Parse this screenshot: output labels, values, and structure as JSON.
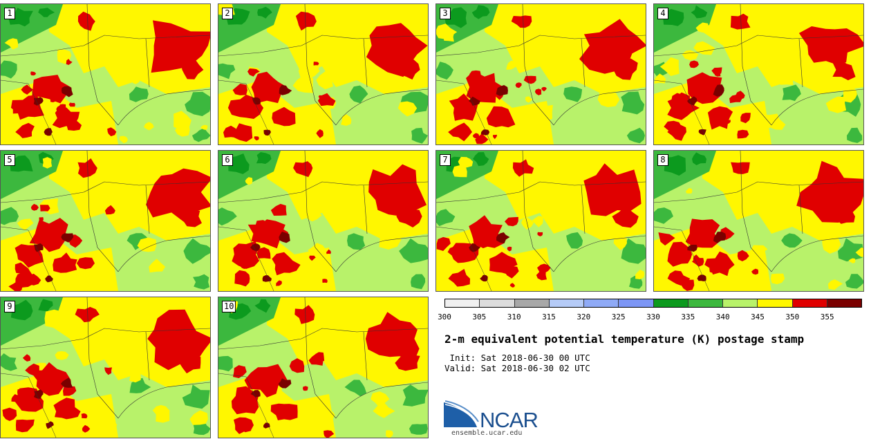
{
  "panels": [
    {
      "label": "1"
    },
    {
      "label": "2"
    },
    {
      "label": "3"
    },
    {
      "label": "4"
    },
    {
      "label": "5"
    },
    {
      "label": "6"
    },
    {
      "label": "7"
    },
    {
      "label": "8"
    },
    {
      "label": "9"
    },
    {
      "label": "10"
    }
  ],
  "colorbar": {
    "ticks": [
      "300",
      "305",
      "310",
      "315",
      "320",
      "325",
      "330",
      "335",
      "340",
      "345",
      "350",
      "355"
    ],
    "colors": [
      "#f0f0f0",
      "#dcdcdc",
      "#a8a8a8",
      "#b5cbf7",
      "#8faaf6",
      "#7d96f5",
      "#0c9a1e",
      "#3cb83e",
      "#b8f26a",
      "#fff700",
      "#e00000",
      "#7a0000"
    ]
  },
  "title": "2-m equivalent potential temperature (K) postage stamp",
  "init_line": " Init: Sat 2018-06-30 00 UTC",
  "valid_line": "Valid: Sat 2018-06-30 02 UTC",
  "logo": {
    "text": "NCAR",
    "url": "ensemble.ucar.edu"
  }
}
